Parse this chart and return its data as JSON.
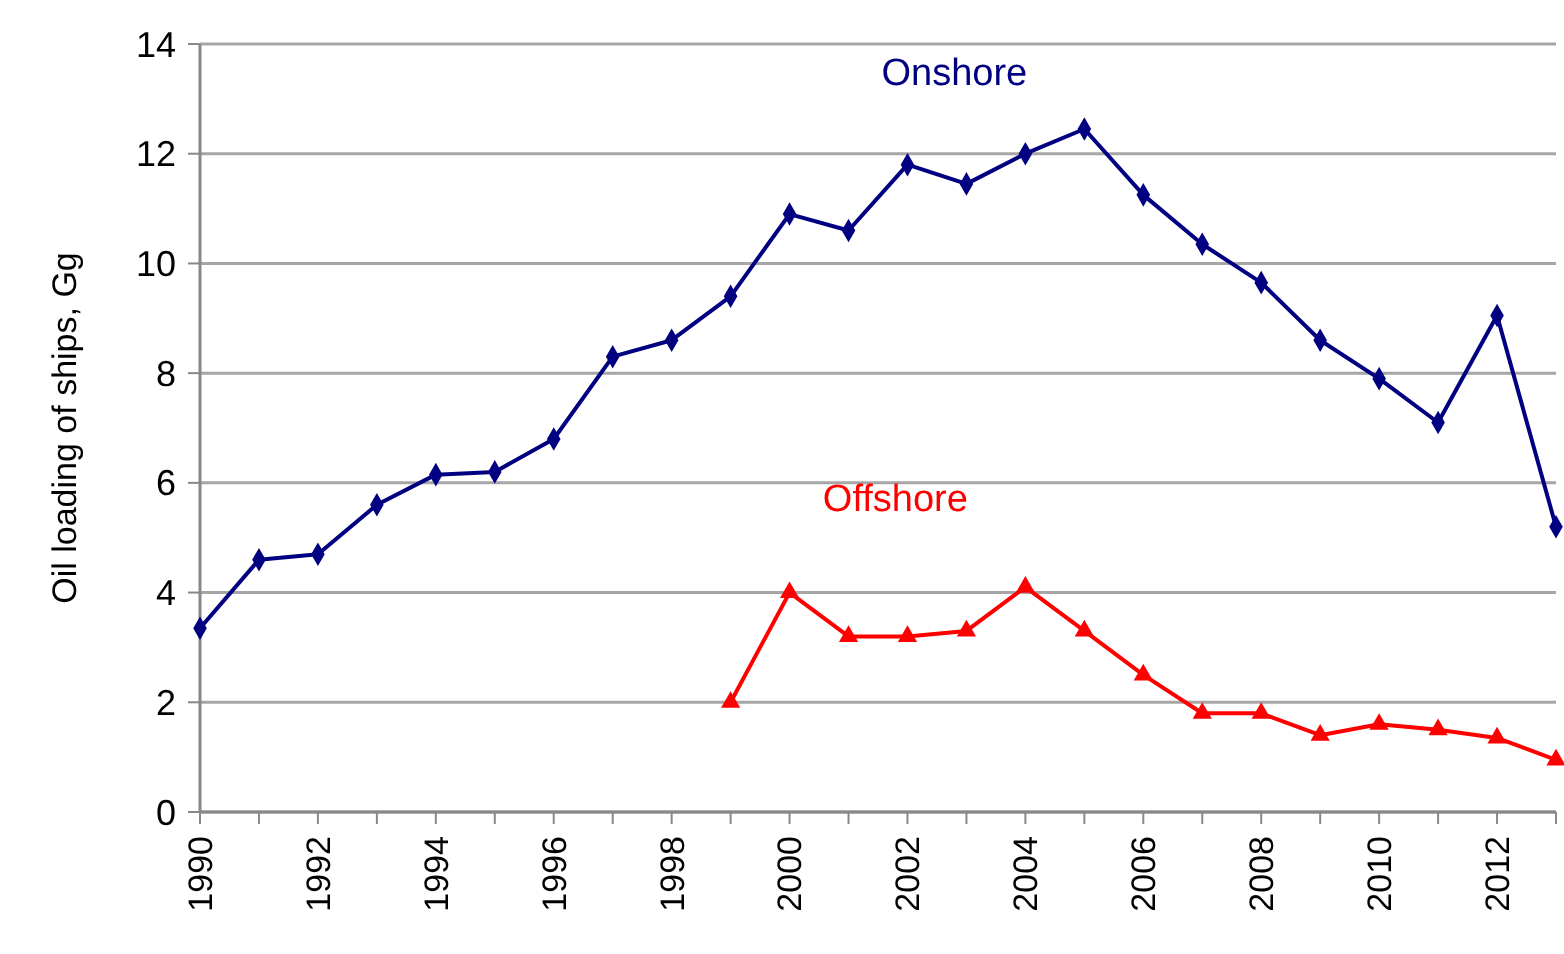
{
  "chart_data": {
    "type": "line",
    "ylabel": "Oil loading of ships, Gg",
    "xlim": [
      1990,
      2013
    ],
    "ylim": [
      0,
      14
    ],
    "yticks": [
      0,
      2,
      4,
      6,
      8,
      10,
      12,
      14
    ],
    "xticks": [
      1990,
      {
        "value": 1991,
        "label": null
      },
      1992,
      {
        "value": 1993,
        "label": null
      },
      1994,
      {
        "value": 1995,
        "label": null
      },
      1996,
      {
        "value": 1997,
        "label": null
      },
      1998,
      {
        "value": 1999,
        "label": null
      },
      2000,
      {
        "value": 2001,
        "label": null
      },
      2002,
      {
        "value": 2003,
        "label": null
      },
      2004,
      {
        "value": 2005,
        "label": null
      },
      2006,
      {
        "value": 2007,
        "label": null
      },
      2008,
      {
        "value": 2009,
        "label": null
      },
      2010,
      {
        "value": 2011,
        "label": null
      },
      2012,
      {
        "value": 2013,
        "label": null
      }
    ],
    "grid": "y",
    "series": [
      {
        "name": "Onshore",
        "color": "#000080",
        "marker": "diamond",
        "x": [
          1990,
          1991,
          1992,
          1993,
          1994,
          1995,
          1996,
          1997,
          1998,
          1999,
          2000,
          2001,
          2002,
          2003,
          2004,
          2005,
          2006,
          2007,
          2008,
          2009,
          2010,
          2011,
          2012,
          2013
        ],
        "values": [
          3.35,
          4.6,
          4.7,
          5.6,
          6.15,
          6.2,
          6.8,
          8.3,
          8.6,
          9.4,
          10.9,
          10.6,
          11.8,
          11.45,
          12.0,
          12.45,
          11.25,
          10.35,
          9.65,
          8.6,
          7.9,
          7.1,
          9.05,
          5.2
        ]
      },
      {
        "name": "Offshore",
        "color": "#ff0000",
        "marker": "triangle",
        "x": [
          1999,
          2000,
          2001,
          2002,
          2003,
          2004,
          2005,
          2006,
          2007,
          2008,
          2009,
          2010,
          2011,
          2012,
          2013
        ],
        "values": [
          2.0,
          4.0,
          3.2,
          3.2,
          3.3,
          4.1,
          3.3,
          2.5,
          1.8,
          1.8,
          1.4,
          1.6,
          1.5,
          1.35,
          0.95
        ]
      }
    ]
  }
}
